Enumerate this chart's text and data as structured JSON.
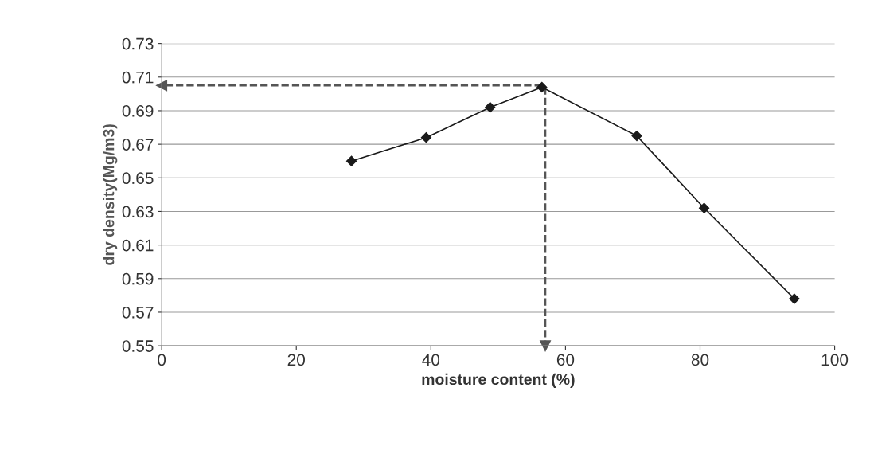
{
  "chart_data": {
    "type": "line",
    "xlabel": "moisture content (%)",
    "ylabel": "dry density(Mg/m3)",
    "x": [
      28.2,
      39.3,
      48.8,
      56.5,
      70.6,
      80.6,
      94.0
    ],
    "series": [
      {
        "color": "#1a1a1a",
        "values": [
          0.66,
          0.674,
          0.692,
          0.704,
          0.675,
          0.632,
          0.578
        ]
      }
    ],
    "xlim": [
      0,
      100
    ],
    "xticks": [
      0,
      20,
      40,
      60,
      80,
      100
    ],
    "ylim": [
      0.55,
      0.73
    ],
    "yticks": [
      0.55,
      0.57,
      0.59,
      0.61,
      0.63,
      0.65,
      0.67,
      0.69,
      0.71,
      0.73
    ],
    "ref_lines": [
      {
        "axis": "x",
        "value": 57,
        "color": "#555555",
        "line_style": "dashed"
      },
      {
        "axis": "y",
        "value": 0.705,
        "color": "#555555",
        "line_style": "dashed"
      }
    ],
    "grid": "y",
    "marker": "diamond",
    "line_style": "solid"
  }
}
